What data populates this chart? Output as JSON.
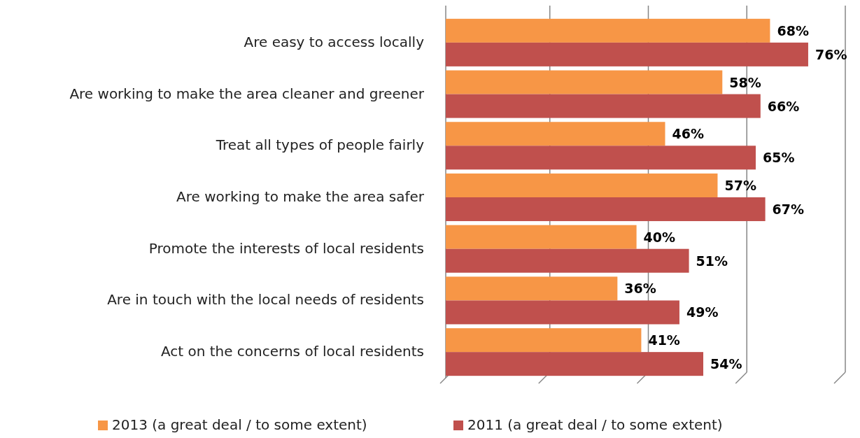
{
  "chart_data": {
    "type": "bar",
    "orientation": "horizontal",
    "categories": [
      "Are easy to access locally",
      "Are working to make the area cleaner and greener",
      "Treat all types of people fairly",
      "Are working to make the area safer",
      "Promote the interests of local residents",
      "Are in touch with the local needs of residents",
      "Act on the concerns of local residents"
    ],
    "series": [
      {
        "name": "2013 (a great deal / to some extent)",
        "color": "#f79646",
        "values": [
          68,
          58,
          46,
          57,
          40,
          36,
          41
        ],
        "value_labels": [
          "68%",
          "58%",
          "46%",
          "57%",
          "40%",
          "36%",
          "41%"
        ]
      },
      {
        "name": "2011 (a great deal / to some extent)",
        "color": "#c0504d",
        "values": [
          76,
          66,
          65,
          67,
          51,
          49,
          54
        ],
        "value_labels": [
          "76%",
          "66%",
          "65%",
          "67%",
          "51%",
          "49%",
          "54%"
        ]
      }
    ],
    "tick_labels": "y",
    "legend": "bottom"
  }
}
